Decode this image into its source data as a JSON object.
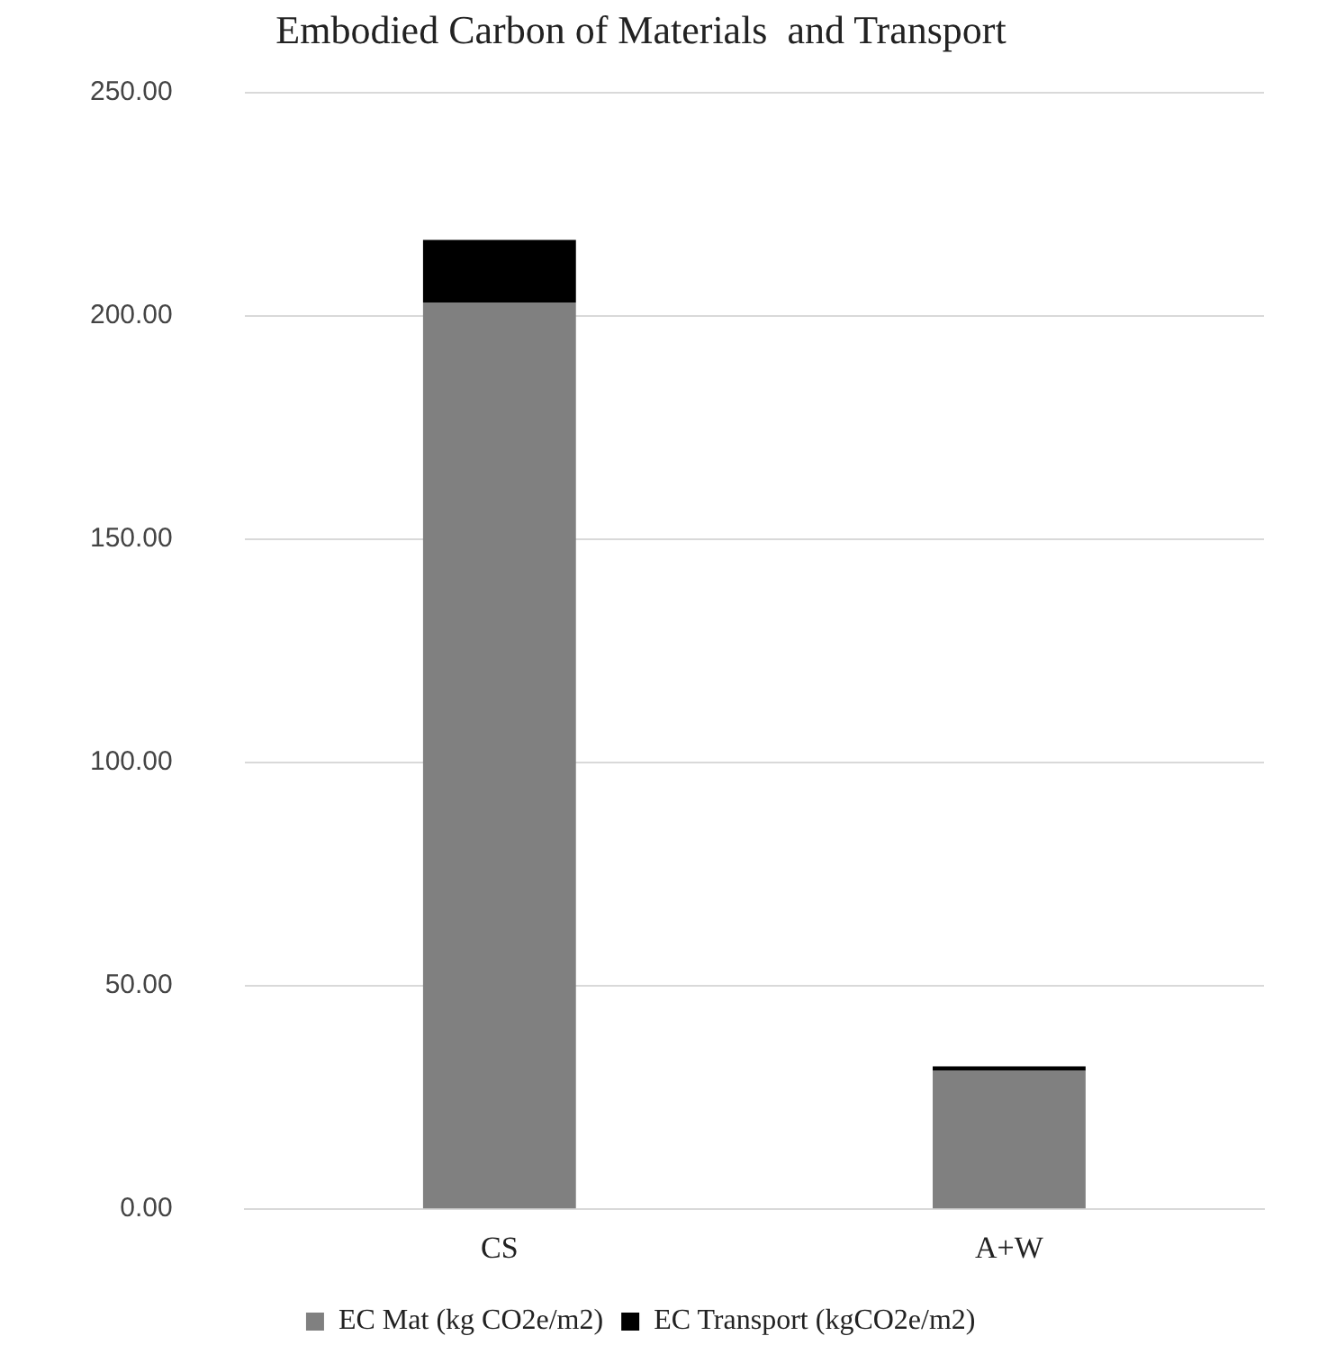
{
  "chart_data": {
    "type": "bar",
    "title": "Embodied Carbon of Materials  and Transport",
    "categories": [
      "CS",
      "A+W"
    ],
    "series": [
      {
        "name": "EC Mat (kg CO2e/m2)",
        "color": "#808080",
        "values": [
          203,
          31
        ]
      },
      {
        "name": "EC Transport (kgCO2e/m2)",
        "color": "#000000",
        "values": [
          14,
          1
        ]
      }
    ],
    "stacked": true,
    "ylim": [
      0,
      250
    ],
    "yticks": [
      {
        "value": 0,
        "label": "0.00"
      },
      {
        "value": 50,
        "label": "50.00"
      },
      {
        "value": 100,
        "label": "100.00"
      },
      {
        "value": 150,
        "label": "150.00"
      },
      {
        "value": 200,
        "label": "200.00"
      },
      {
        "value": 250,
        "label": "250.00"
      }
    ],
    "grid": "y",
    "legend": "bottom"
  }
}
